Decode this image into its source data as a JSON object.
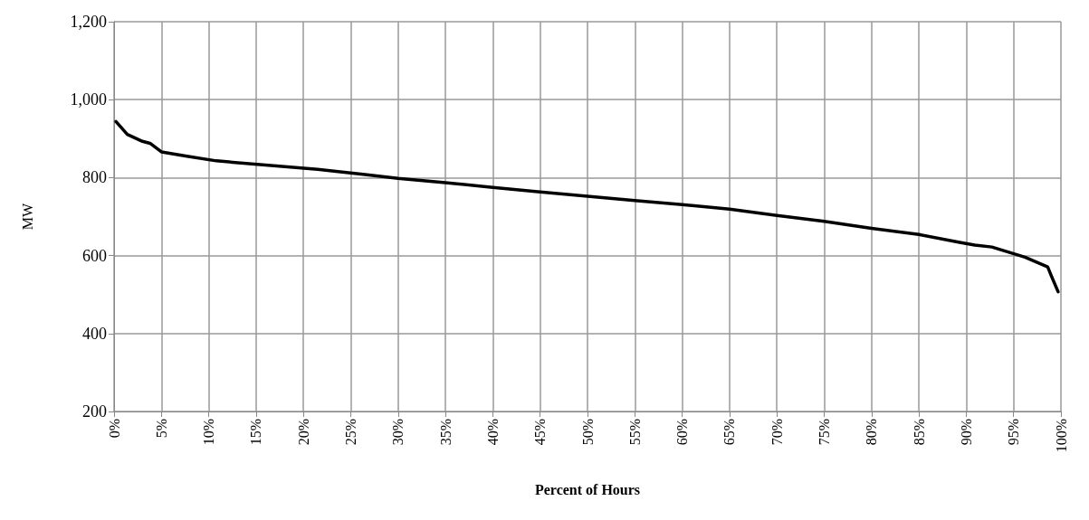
{
  "chart_data": {
    "type": "line",
    "xlabel": "Percent of Hours",
    "ylabel": "MW",
    "xlim": [
      0,
      100
    ],
    "ylim": [
      200,
      1200
    ],
    "xticks": [
      {
        "value": 0,
        "label": "0%"
      },
      {
        "value": 5,
        "label": "5%"
      },
      {
        "value": 10,
        "label": "10%"
      },
      {
        "value": 15,
        "label": "15%"
      },
      {
        "value": 20,
        "label": "20%"
      },
      {
        "value": 25,
        "label": "25%"
      },
      {
        "value": 30,
        "label": "30%"
      },
      {
        "value": 35,
        "label": "35%"
      },
      {
        "value": 40,
        "label": "40%"
      },
      {
        "value": 45,
        "label": "45%"
      },
      {
        "value": 50,
        "label": "50%"
      },
      {
        "value": 55,
        "label": "55%"
      },
      {
        "value": 60,
        "label": "60%"
      },
      {
        "value": 65,
        "label": "65%"
      },
      {
        "value": 70,
        "label": "70%"
      },
      {
        "value": 75,
        "label": "75%"
      },
      {
        "value": 80,
        "label": "80%"
      },
      {
        "value": 85,
        "label": "85%"
      },
      {
        "value": 90,
        "label": "90%"
      },
      {
        "value": 95,
        "label": "95%"
      },
      {
        "value": 100,
        "label": "100%"
      }
    ],
    "yticks": [
      200,
      400,
      600,
      800,
      {
        "value": 1000,
        "label": "1,000"
      },
      {
        "value": 1200,
        "label": "1,200"
      }
    ],
    "grid": true,
    "marker": "none",
    "line_style": "solid",
    "series": [
      {
        "color": "#000000",
        "x": [
          0.2,
          1.4,
          3,
          3.8,
          5,
          7.7,
          10.8,
          16,
          21.5,
          26.5,
          30,
          35,
          40,
          45,
          50,
          55,
          60,
          65,
          70,
          75,
          80,
          85,
          89.3,
          90.9,
          92.7,
          96.2,
          98.6,
          99,
          99.7
        ],
        "values": [
          944,
          911,
          893,
          888,
          866,
          855,
          843,
          832,
          821,
          808,
          798,
          787,
          775,
          763,
          752,
          741,
          731,
          719,
          703,
          688,
          670,
          654,
          634,
          627,
          622,
          596,
          571,
          547,
          507
        ]
      }
    ]
  }
}
